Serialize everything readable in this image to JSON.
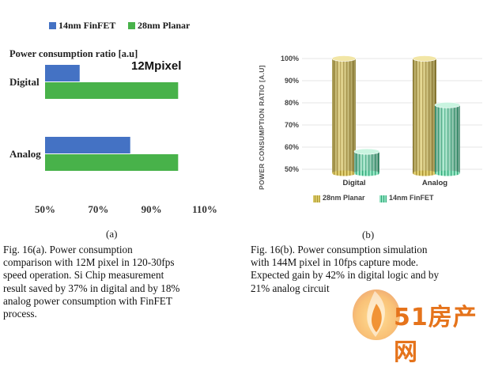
{
  "colors": {
    "finfet_a": "#4472c4",
    "planar_a": "#48b24a",
    "planar_b": "#c9b44a",
    "finfet_b": "#3fb98a",
    "watermark": "#e5731b"
  },
  "chart_data": [
    {
      "id": "fig16a",
      "type": "bar",
      "orientation": "horizontal",
      "title": "Power consumption ratio [a.u]",
      "annotation": "12Mpixel",
      "categories": [
        "Digital",
        "Analog"
      ],
      "series": [
        {
          "name": "14nm FinFET",
          "values": [
            63,
            82
          ]
        },
        {
          "name": "28nm Planar",
          "values": [
            100,
            100
          ]
        }
      ],
      "xlim": [
        50,
        110
      ],
      "xticks": [
        "50%",
        "70%",
        "90%",
        "110%"
      ],
      "legend": "top",
      "grid": false,
      "panel_label": "(a)"
    },
    {
      "id": "fig16b",
      "type": "bar",
      "style": "3d-cylinder",
      "ylabel": "POWER CONSUMPTION RATIO [A.U]",
      "categories": [
        "Digital",
        "Analog"
      ],
      "series": [
        {
          "name": "28nm Planar",
          "values": [
            100,
            100
          ]
        },
        {
          "name": "14nm FinFET",
          "values": [
            58,
            79
          ]
        }
      ],
      "ylim": [
        50,
        100
      ],
      "yticks": [
        "50%",
        "60%",
        "70%",
        "80%",
        "90%",
        "100%"
      ],
      "legend": "bottom",
      "grid": true,
      "panel_label": "(b)"
    }
  ],
  "captions": {
    "a": [
      "Fig.     16(a).     Power     consumption",
      "comparison with 12M pixel in 120-30fps",
      "speed operation. Si Chip measurement",
      "result saved by 37% in digital and by 18%",
      "analog power consumption with FinFET",
      "process."
    ],
    "b": [
      "Fig. 16(b). Power consumption simulation",
      "with 144M pixel in 10fps capture mode.",
      "Expected gain by 42% in digital logic and by",
      "21% analog circuit"
    ]
  },
  "watermark": {
    "text": "51房产网"
  }
}
